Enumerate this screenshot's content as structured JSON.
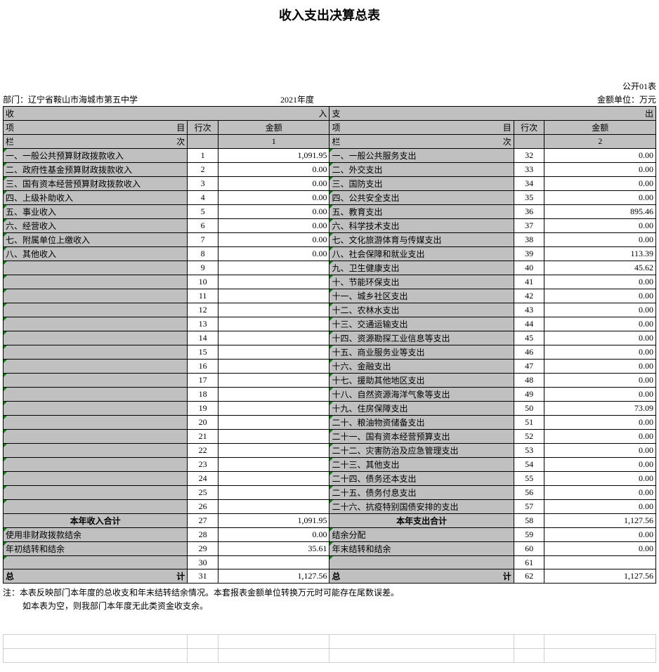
{
  "title": "收入支出决算总表",
  "form_no": "公开01表",
  "dept_label": "部门：",
  "dept_name": "辽宁省鞍山市海城市第五中学",
  "year": "2021年度",
  "unit": "金额单位：万元",
  "hdr": {
    "income": "收",
    "income_r": "入",
    "expense": "支",
    "expense_r": "出",
    "item": "项",
    "item_r": "目",
    "rownum": "行次",
    "amount": "金额",
    "col": "栏",
    "col_r": "次",
    "one": "1",
    "two": "2"
  },
  "income_rows": [
    {
      "label": "一、一般公共预算财政拨款收入",
      "n": "1",
      "amt": "1,091.95"
    },
    {
      "label": "二、政府性基金预算财政拨款收入",
      "n": "2",
      "amt": "0.00"
    },
    {
      "label": "三、国有资本经营预算财政拨款收入",
      "n": "3",
      "amt": "0.00"
    },
    {
      "label": "四、上级补助收入",
      "n": "4",
      "amt": "0.00"
    },
    {
      "label": "五、事业收入",
      "n": "5",
      "amt": "0.00"
    },
    {
      "label": "六、经营收入",
      "n": "6",
      "amt": "0.00"
    },
    {
      "label": "七、附属单位上缴收入",
      "n": "7",
      "amt": "0.00"
    },
    {
      "label": "八、其他收入",
      "n": "8",
      "amt": "0.00"
    },
    {
      "label": "",
      "n": "9",
      "amt": ""
    },
    {
      "label": "",
      "n": "10",
      "amt": ""
    },
    {
      "label": "",
      "n": "11",
      "amt": ""
    },
    {
      "label": "",
      "n": "12",
      "amt": ""
    },
    {
      "label": "",
      "n": "13",
      "amt": ""
    },
    {
      "label": "",
      "n": "14",
      "amt": ""
    },
    {
      "label": "",
      "n": "15",
      "amt": ""
    },
    {
      "label": "",
      "n": "16",
      "amt": ""
    },
    {
      "label": "",
      "n": "17",
      "amt": ""
    },
    {
      "label": "",
      "n": "18",
      "amt": ""
    },
    {
      "label": "",
      "n": "19",
      "amt": ""
    },
    {
      "label": "",
      "n": "20",
      "amt": ""
    },
    {
      "label": "",
      "n": "21",
      "amt": ""
    },
    {
      "label": "",
      "n": "22",
      "amt": ""
    },
    {
      "label": "",
      "n": "23",
      "amt": ""
    },
    {
      "label": "",
      "n": "24",
      "amt": ""
    },
    {
      "label": "",
      "n": "25",
      "amt": ""
    },
    {
      "label": "",
      "n": "26",
      "amt": ""
    }
  ],
  "expense_rows": [
    {
      "label": "一、一般公共服务支出",
      "n": "32",
      "amt": "0.00"
    },
    {
      "label": "二、外交支出",
      "n": "33",
      "amt": "0.00"
    },
    {
      "label": "三、国防支出",
      "n": "34",
      "amt": "0.00"
    },
    {
      "label": "四、公共安全支出",
      "n": "35",
      "amt": "0.00"
    },
    {
      "label": "五、教育支出",
      "n": "36",
      "amt": "895.46"
    },
    {
      "label": "六、科学技术支出",
      "n": "37",
      "amt": "0.00"
    },
    {
      "label": "七、文化旅游体育与传媒支出",
      "n": "38",
      "amt": "0.00"
    },
    {
      "label": "八、社会保障和就业支出",
      "n": "39",
      "amt": "113.39"
    },
    {
      "label": "九、卫生健康支出",
      "n": "40",
      "amt": "45.62"
    },
    {
      "label": "十、节能环保支出",
      "n": "41",
      "amt": "0.00"
    },
    {
      "label": "十一、城乡社区支出",
      "n": "42",
      "amt": "0.00"
    },
    {
      "label": "十二、农林水支出",
      "n": "43",
      "amt": "0.00"
    },
    {
      "label": "十三、交通运输支出",
      "n": "44",
      "amt": "0.00"
    },
    {
      "label": "十四、资源勘探工业信息等支出",
      "n": "45",
      "amt": "0.00"
    },
    {
      "label": "十五、商业服务业等支出",
      "n": "46",
      "amt": "0.00"
    },
    {
      "label": "十六、金融支出",
      "n": "47",
      "amt": "0.00"
    },
    {
      "label": "十七、援助其他地区支出",
      "n": "48",
      "amt": "0.00"
    },
    {
      "label": "十八、自然资源海洋气象等支出",
      "n": "49",
      "amt": "0.00"
    },
    {
      "label": "十九、住房保障支出",
      "n": "50",
      "amt": "73.09"
    },
    {
      "label": "二十、粮油物资储备支出",
      "n": "51",
      "amt": "0.00"
    },
    {
      "label": "二十一、国有资本经营预算支出",
      "n": "52",
      "amt": "0.00"
    },
    {
      "label": "二十二、灾害防治及应急管理支出",
      "n": "53",
      "amt": "0.00"
    },
    {
      "label": "二十三、其他支出",
      "n": "54",
      "amt": "0.00"
    },
    {
      "label": "二十四、债务还本支出",
      "n": "55",
      "amt": "0.00"
    },
    {
      "label": "二十五、债务付息支出",
      "n": "56",
      "amt": "0.00"
    },
    {
      "label": "二十六、抗疫特别国债安排的支出",
      "n": "57",
      "amt": "0.00"
    }
  ],
  "subtotal": {
    "in_label": "本年收入合计",
    "in_n": "27",
    "in_amt": "1,091.95",
    "out_label": "本年支出合计",
    "out_n": "58",
    "out_amt": "1,127.56"
  },
  "extra": [
    {
      "l": "使用非财政拨款结余",
      "ln": "28",
      "la": "0.00",
      "r": "结余分配",
      "rn": "59",
      "ra": "0.00"
    },
    {
      "l": "年初结转和结余",
      "ln": "29",
      "la": "35.61",
      "r": "年末结转和结余",
      "rn": "60",
      "ra": "0.00"
    },
    {
      "l": "",
      "ln": "30",
      "la": "",
      "r": "",
      "rn": "61",
      "ra": ""
    }
  ],
  "total": {
    "label_l": "总",
    "label_r": "计",
    "in_n": "31",
    "in_amt": "1,127.56",
    "out_n": "62",
    "out_amt": "1,127.56"
  },
  "notes": {
    "l1": "注：本表反映部门本年度的总收支和年末结转结余情况。本套报表金额单位转换万元时可能存在尾数误差。",
    "l2": "如本表为空，则我部门本年度无此类资金收支余。"
  },
  "colors": {
    "gray": "#c0c0c0",
    "border": "#000000",
    "tri": "#008000",
    "light": "#cfcfcf"
  },
  "colwidths": {
    "item": 240,
    "num": 40,
    "amt": 145
  }
}
